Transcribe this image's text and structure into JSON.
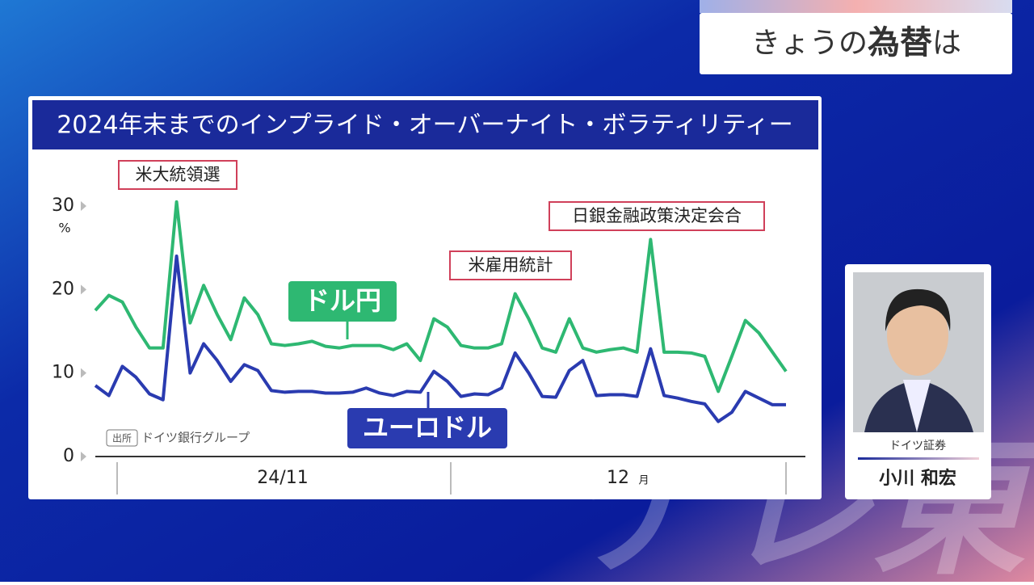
{
  "header": {
    "prefix": "きょうの",
    "emphasis": "為替",
    "suffix": "は"
  },
  "guest": {
    "company": "ドイツ証券",
    "name": "小川 和宏"
  },
  "watermark": "テレ東",
  "chart_data": {
    "type": "line",
    "title": "2024年末までのインプライド・オーバーナイト・ボラティリティー",
    "y_unit": "%",
    "ylim": [
      0,
      36
    ],
    "yticks": [
      0,
      10,
      20,
      30
    ],
    "x_labels": [
      "24/11",
      "12"
    ],
    "x_unit": "月",
    "source_tag": "出所",
    "source": "ドイツ銀行グループ",
    "annotations": [
      "米大統領選",
      "米雇用統計",
      "日銀金融政策決定会合"
    ],
    "series": [
      {
        "name": "ドル円",
        "color": "#2eb872",
        "values": [
          17.5,
          19.3,
          18.5,
          15.5,
          13,
          13,
          30.5,
          16,
          20.5,
          17,
          14,
          19,
          17,
          13.5,
          13.3,
          13.5,
          13.8,
          13.2,
          13,
          13.3,
          13.3,
          13.3,
          12.8,
          13.5,
          11.5,
          16.5,
          15.5,
          13.3,
          13,
          13,
          13.5,
          19.5,
          16.5,
          13,
          12.5,
          16.5,
          13,
          12.5,
          12.8,
          13,
          12.5,
          26,
          12.5,
          12.5,
          12.4,
          12,
          7.8,
          12,
          16.3,
          14.8,
          12.5,
          10.2
        ]
      },
      {
        "name": "ユーロドル",
        "color": "#2a3bb0",
        "values": [
          8.5,
          7.3,
          10.8,
          9.5,
          7.5,
          6.8,
          24,
          10,
          13.5,
          11.5,
          9,
          11,
          10.3,
          7.9,
          7.7,
          7.8,
          7.8,
          7.6,
          7.6,
          7.7,
          8.2,
          7.6,
          7.3,
          7.8,
          7.7,
          10.2,
          9,
          7.2,
          7.5,
          7.4,
          8.2,
          12.4,
          10,
          7.2,
          7.1,
          10.3,
          11.5,
          7.3,
          7.4,
          7.4,
          7.2,
          12.9,
          7.3,
          7,
          6.6,
          6.3,
          4.2,
          5.3,
          7.8,
          7,
          6.2,
          6.2
        ]
      }
    ]
  }
}
